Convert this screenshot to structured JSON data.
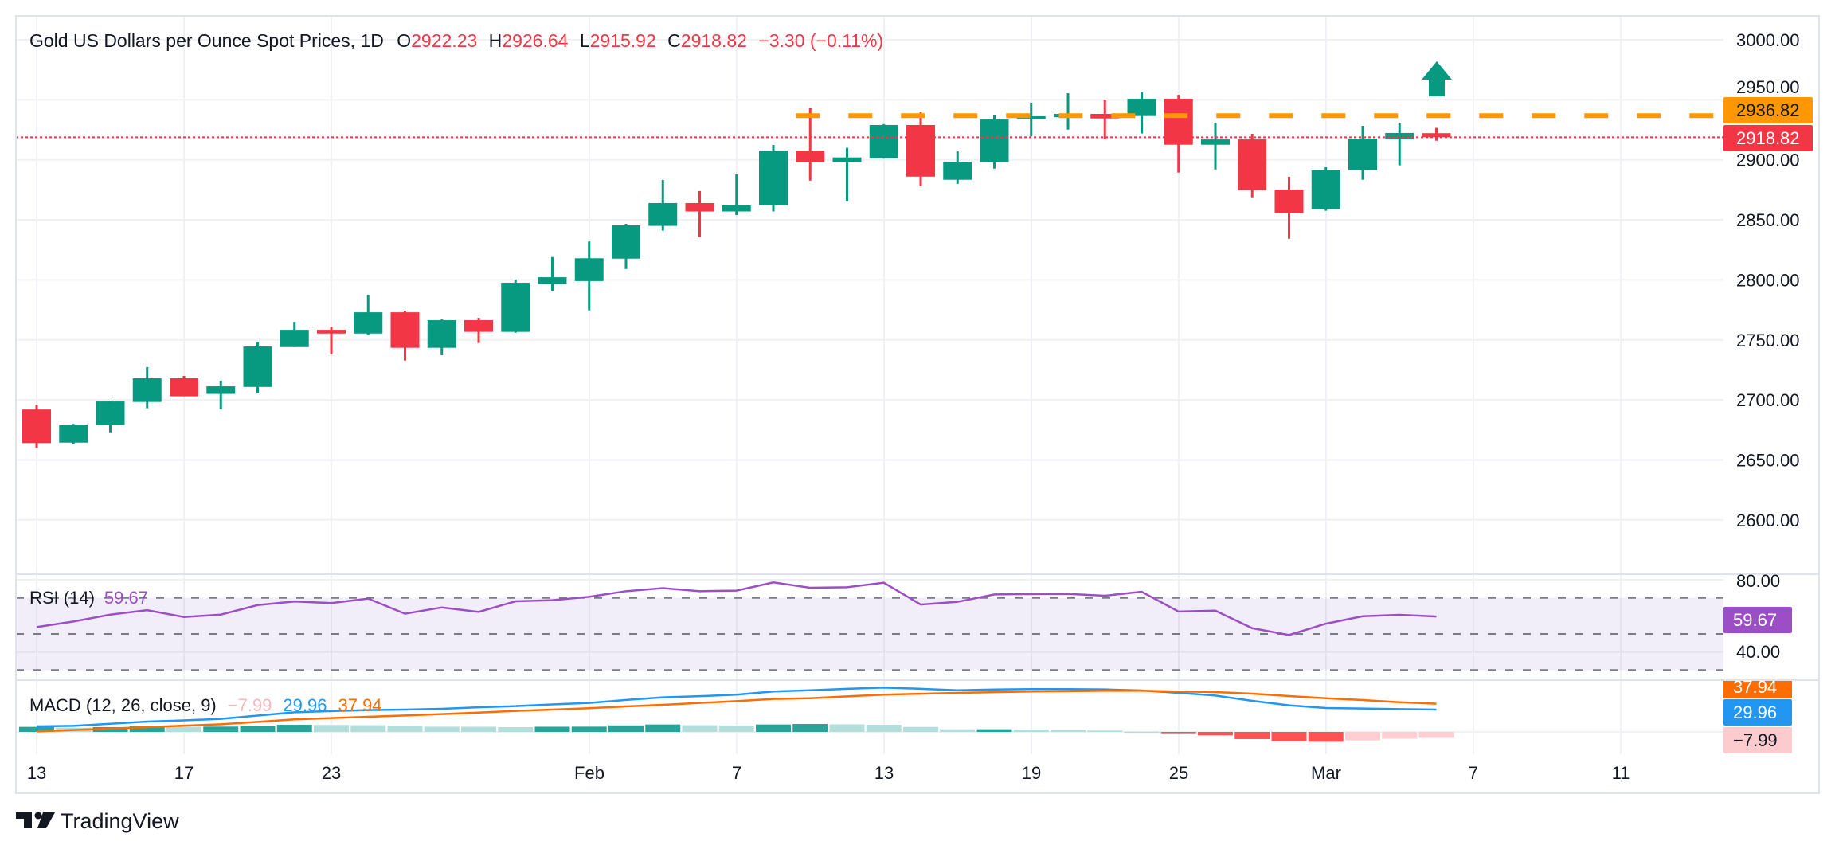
{
  "header": {
    "title": "Gold US Dollars per Ounce Spot Prices, 1D",
    "o_label": "O",
    "o_value": "2922.23",
    "h_label": "H",
    "h_value": "2926.64",
    "l_label": "L",
    "l_value": "2915.92",
    "c_label": "C",
    "c_value": "2918.82",
    "change": "−3.30 (−0.11%)"
  },
  "colors": {
    "up": "#089981",
    "down": "#f23645",
    "level": "#ff9800",
    "rsi": "#9c4fc5",
    "macd": "#2196f3",
    "signal": "#ff6d00",
    "hist_up_strong": "#26a69a",
    "hist_up_weak": "#b2dfdb",
    "hist_down_strong": "#ff5252",
    "hist_down_weak": "#ffcdd2"
  },
  "annotation": {
    "icon": "up-arrow-icon",
    "color": "#089981"
  },
  "price_axis": {
    "ticks": [
      "3000.00",
      "2950.00",
      "2900.00",
      "2850.00",
      "2800.00",
      "2750.00",
      "2700.00",
      "2650.00",
      "2600.00"
    ],
    "level_label": "2936.82",
    "last_price_label": "2918.82"
  },
  "rsi": {
    "legend": "RSI (14)",
    "value": "59.67",
    "ticks": [
      "80.00",
      "40.00"
    ]
  },
  "macd": {
    "legend": "MACD (12, 26, close, 9)",
    "hist_value": "−7.99",
    "macd_value": "29.96",
    "signal_value": "37.94"
  },
  "time_axis": {
    "labels": [
      "13",
      "17",
      "23",
      "Feb",
      "7",
      "13",
      "19",
      "25",
      "Mar",
      "7",
      "11"
    ]
  },
  "branding": {
    "logo_text": "TradingView"
  },
  "chart_data": {
    "type": "candlestick",
    "title": "Gold US Dollars per Ounce Spot Prices, 1D",
    "ylim": [
      2575,
      3020
    ],
    "grid": true,
    "dates": [
      "Jan 13",
      "Jan 14",
      "Jan 15",
      "Jan 16",
      "Jan 17",
      "Jan 20",
      "Jan 21",
      "Jan 22",
      "Jan 23",
      "Jan 24",
      "Jan 27",
      "Jan 28",
      "Jan 29",
      "Jan 30",
      "Jan 31",
      "Feb 3",
      "Feb 4",
      "Feb 5",
      "Feb 6",
      "Feb 7",
      "Feb 10",
      "Feb 11",
      "Feb 12",
      "Feb 13",
      "Feb 14",
      "Feb 17",
      "Feb 18",
      "Feb 19",
      "Feb 20",
      "Feb 21",
      "Feb 24",
      "Feb 25",
      "Feb 26",
      "Feb 27",
      "Feb 28",
      "Mar 3",
      "Mar 4",
      "Mar 5",
      "Mar 6"
    ],
    "open": [
      2692,
      2664.4,
      2679,
      2698.3,
      2718,
      2705,
      2710.8,
      2744,
      2758.4,
      2755.3,
      2773,
      2743.4,
      2766.4,
      2756.7,
      2796.5,
      2799,
      2817.7,
      2845,
      2864,
      2857,
      2862.2,
      2907.8,
      2898,
      2901.3,
      2929,
      2883.4,
      2898,
      2934,
      2935.5,
      2938.3,
      2936.5,
      2950.9,
      2912.6,
      2917,
      2875.2,
      2858.9,
      2891.4,
      2917.2,
      2922.23
    ],
    "high": [
      2696,
      2680,
      2699.4,
      2727.3,
      2720,
      2716,
      2748,
      2765,
      2761,
      2787.6,
      2774.4,
      2767,
      2768.4,
      2800.3,
      2819,
      2832,
      2846.7,
      2883.3,
      2874,
      2888,
      2912.4,
      2943,
      2910,
      2929.7,
      2940,
      2907,
      2937.6,
      2947.6,
      2955.5,
      2950.2,
      2956.2,
      2954.2,
      2931,
      2921.7,
      2885.9,
      2893.8,
      2928.3,
      2930.3,
      2926.64
    ],
    "low": [
      2660,
      2663,
      2672.4,
      2693,
      2703,
      2692.3,
      2705.6,
      2744,
      2737.9,
      2754,
      2732.8,
      2737.2,
      2747.4,
      2756,
      2791,
      2774.6,
      2809,
      2841,
      2835.6,
      2854,
      2857,
      2882.7,
      2865.5,
      2901,
      2878,
      2880,
      2892.7,
      2919.5,
      2925.2,
      2917.2,
      2922,
      2889.4,
      2892,
      2868.8,
      2834.3,
      2857.6,
      2883.4,
      2895.4,
      2915.92
    ],
    "close": [
      2664,
      2679.5,
      2698.7,
      2718,
      2703,
      2711.3,
      2744.5,
      2758.4,
      2755.3,
      2773,
      2743.4,
      2766.4,
      2756.7,
      2797.6,
      2802.2,
      2818,
      2845.4,
      2864,
      2857,
      2862,
      2907.8,
      2898,
      2902,
      2929,
      2886,
      2898.5,
      2933.6,
      2936.3,
      2938.3,
      2934.5,
      2950.9,
      2912.6,
      2917,
      2874.8,
      2855.6,
      2891.2,
      2917.7,
      2922.4,
      2918.82
    ],
    "level_line": {
      "value": 2936.82,
      "from_date": "Feb 11",
      "style": "dashed"
    },
    "last_price_line": {
      "value": 2918.82,
      "style": "dotted"
    },
    "rsi": {
      "ylim": [
        25,
        85
      ],
      "bands": [
        70,
        50,
        30
      ],
      "values": [
        53.8,
        56.9,
        60.7,
        63.2,
        59.4,
        60.7,
        66.0,
        68.0,
        67.1,
        69.6,
        61.2,
        64.7,
        62.2,
        68.1,
        68.7,
        70.6,
        73.7,
        75.4,
        73.7,
        74.0,
        78.6,
        75.6,
        75.9,
        78.4,
        66.3,
        67.8,
        71.9,
        72.1,
        72.2,
        71.2,
        73.4,
        62.4,
        62.9,
        53.2,
        49.4,
        55.7,
        59.8,
        60.6,
        59.67
      ]
    },
    "macd_panel": {
      "macd": [
        7.5,
        8.2,
        11,
        13.9,
        15.5,
        17.5,
        22,
        26.4,
        28,
        29.3,
        30,
        31,
        33,
        34.6,
        37,
        38.9,
        43,
        46.4,
        48,
        50,
        54.3,
        56,
        58,
        59.6,
        58,
        56,
        57,
        57.5,
        57.5,
        57.1,
        55.7,
        52.5,
        48.9,
        41.8,
        35.7,
        32.1,
        31.4,
        30.7,
        29.96
      ],
      "signal": [
        0.7,
        2.5,
        4.5,
        6.4,
        8.4,
        10.3,
        13.5,
        16.8,
        18.6,
        20.3,
        22.1,
        23.9,
        26,
        28.2,
        30,
        31.8,
        34.2,
        36.4,
        39,
        41.4,
        44.3,
        45.3,
        47.8,
        50,
        51.3,
        52.5,
        53.4,
        54.3,
        54.8,
        55.3,
        55.3,
        54.3,
        53.5,
        51.4,
        48.2,
        45.3,
        42.8,
        39.9,
        37.94
      ]
    }
  }
}
